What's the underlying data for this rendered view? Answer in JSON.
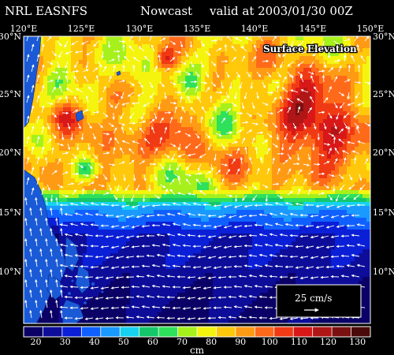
{
  "header": {
    "left": "NRL EASNFS",
    "middle": "Nowcast",
    "right": "valid at 2003/01/30 00Z"
  },
  "map": {
    "field_label": "Surface Elevation",
    "lon_labels": [
      "120°E",
      "125°E",
      "130°E",
      "135°E",
      "140°E",
      "145°E",
      "150°E"
    ],
    "lat_labels": [
      "30°N",
      "25°N",
      "20°N",
      "15°N",
      "10°N"
    ],
    "lon_range": [
      120,
      150
    ],
    "lat_range": [
      5,
      30
    ],
    "land_color": "#1a5ad6"
  },
  "reference_vector": {
    "label": "25 cm/s"
  },
  "colorbar": {
    "unit": "cm",
    "tick_labels": [
      "20",
      "30",
      "40",
      "50",
      "60",
      "70",
      "80",
      "90",
      "100",
      "110",
      "120",
      "130"
    ],
    "colors": [
      "#0a0066",
      "#0d0d9a",
      "#0a1fd6",
      "#1060ff",
      "#1a99ff",
      "#16d2f0",
      "#14c76b",
      "#2ee05a",
      "#a6f01c",
      "#f4f40f",
      "#ffc80a",
      "#ff9a14",
      "#ff6a1a",
      "#f03a14",
      "#d81818",
      "#b01616",
      "#7a1010",
      "#4a0a0a"
    ]
  }
}
